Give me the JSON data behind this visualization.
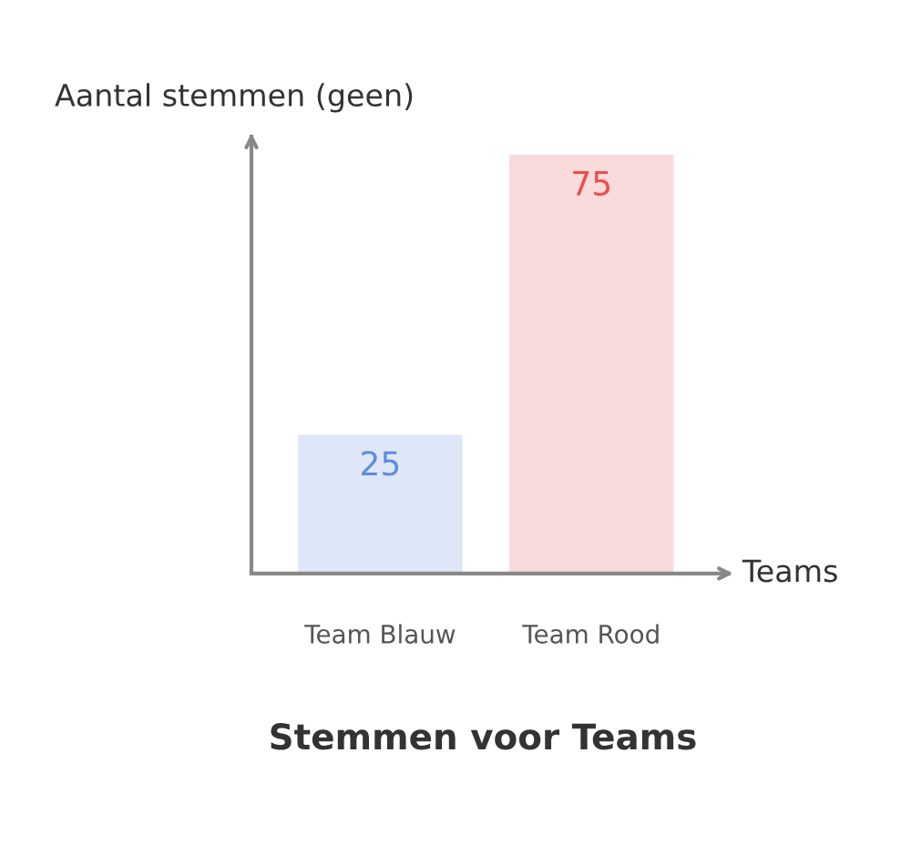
{
  "chart_data": {
    "type": "bar",
    "title": "Stemmen voor Teams",
    "xlabel": "Teams",
    "ylabel": "Aantal stemmen (geen)",
    "categories": [
      "Team Blauw",
      "Team Rood"
    ],
    "values": [
      25,
      75
    ],
    "colors": [
      "#dae6fb",
      "#ffd6d6"
    ],
    "data_labels": true,
    "grid": false
  }
}
